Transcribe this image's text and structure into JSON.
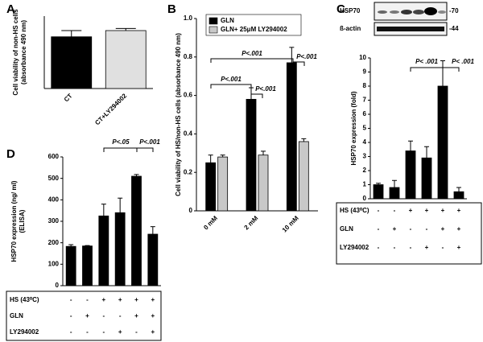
{
  "chart_data": [
    {
      "type": "bar",
      "panel": "A",
      "y_label": [
        "Cell viability of non-HS cells",
        "(absorbance 490 nm)"
      ],
      "ylim": [
        0,
        0.35
      ],
      "categories": [
        "CT",
        "CT+LY294002"
      ],
      "series": [
        {
          "color": "#000000",
          "values": [
            0.25,
            0.28
          ],
          "errors": [
            0.03,
            0.01
          ]
        }
      ],
      "colors": [
        "#000000",
        "#e0e0e0"
      ]
    },
    {
      "type": "bar",
      "panel": "B",
      "y_label": [
        "Cell viability of HS/non-HS cells (absorbance 490 nm)"
      ],
      "ylim": [
        0,
        1.0
      ],
      "yticks": [
        0,
        0.2,
        0.4,
        0.6,
        0.8,
        {
          "value": 1.0,
          "label": "1.0"
        }
      ],
      "categories": [
        "0 mM",
        "2 mM",
        "10 mM"
      ],
      "series": [
        {
          "name": "GLN",
          "color": "#000000",
          "values": [
            0.25,
            0.58,
            0.77
          ],
          "errors": [
            0.04,
            0.06,
            0.08
          ]
        },
        {
          "name": "GLN+ 25μM LY294002",
          "color": "#c8c8c8",
          "values": [
            0.28,
            0.29,
            0.36
          ],
          "errors": [
            0.01,
            0.02,
            0.015
          ]
        }
      ],
      "annotations": [
        "P<.001",
        "P<.001",
        "P<.001",
        "P<.001"
      ]
    },
    {
      "type": "bar",
      "panel": "C",
      "blot": [
        {
          "label": "HSP70",
          "marker": "-70"
        },
        {
          "label": "ß-actin",
          "marker": "-44"
        }
      ],
      "y_label": [
        "HSP70 expression (fold)"
      ],
      "ylim": [
        0,
        10
      ],
      "yticks": [
        0,
        1,
        2,
        3,
        4,
        5,
        6,
        7,
        8,
        9,
        10
      ],
      "series": [
        {
          "color": "#000000",
          "values": [
            1.0,
            0.8,
            3.4,
            2.9,
            8.0,
            0.5
          ],
          "errors": [
            0.1,
            0.5,
            0.7,
            0.8,
            1.8,
            0.3
          ]
        }
      ],
      "annotations": [
        "P< .001",
        "P< .001"
      ],
      "conditions": [
        {
          "label": "HS (43⁰C)",
          "signs": [
            "-",
            "-",
            "+",
            "+",
            "+",
            "+"
          ]
        },
        {
          "label": "GLN",
          "signs": [
            "-",
            "+",
            "-",
            "-",
            "+",
            "+"
          ]
        },
        {
          "label": "LY294002",
          "signs": [
            "-",
            "-",
            "-",
            "+",
            "-",
            "+"
          ]
        }
      ]
    },
    {
      "type": "bar",
      "panel": "D",
      "y_label": [
        "HSP70 expression (ng/ ml)",
        "(ELISA)"
      ],
      "ylim": [
        0,
        600
      ],
      "yticks": [
        0,
        100,
        200,
        300,
        400,
        500,
        600
      ],
      "series": [
        {
          "color": "#000000",
          "values": [
            183,
            185,
            325,
            340,
            510,
            240
          ],
          "errors": [
            8,
            2,
            55,
            68,
            8,
            35
          ]
        }
      ],
      "annotations": [
        "P<.05",
        "P<.001"
      ],
      "conditions": [
        {
          "label": "HS (43⁰C)",
          "signs": [
            "-",
            "-",
            "+",
            "+",
            "+",
            "+"
          ]
        },
        {
          "label": "GLN",
          "signs": [
            "-",
            "+",
            "-",
            "-",
            "+",
            "+"
          ]
        },
        {
          "label": "LY294002",
          "signs": [
            "-",
            "-",
            "-",
            "+",
            "-",
            "+"
          ]
        }
      ]
    }
  ]
}
